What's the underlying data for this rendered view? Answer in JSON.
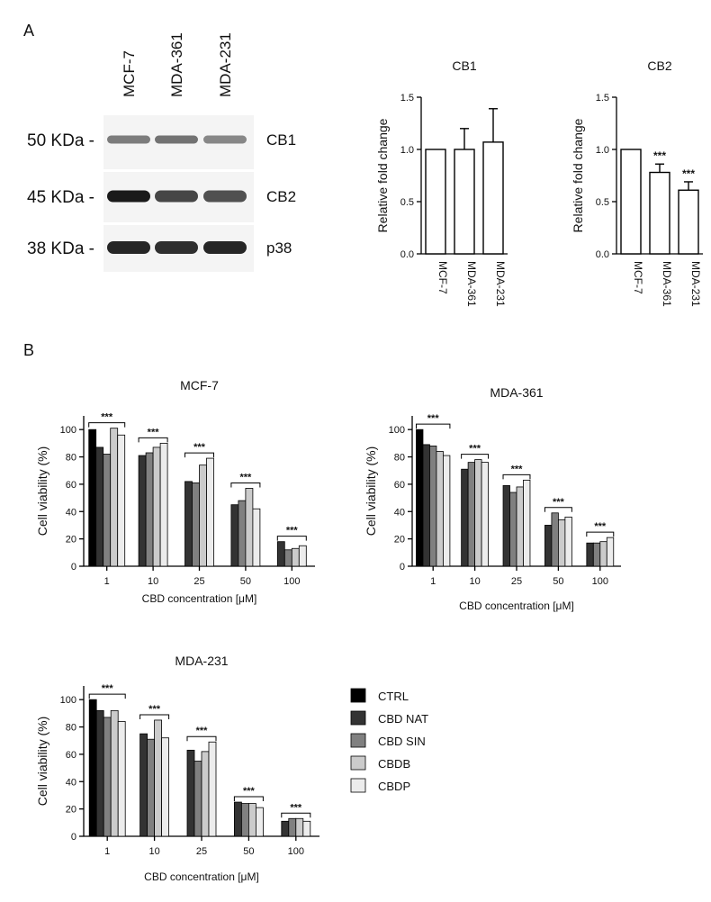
{
  "panels": {
    "a": "A",
    "b": "B"
  },
  "blot": {
    "cell_lines": [
      "MCF-7",
      "MDA-361",
      "MDA-231"
    ],
    "bands": [
      {
        "mw": "50 KDa -",
        "protein": "CB1",
        "intensity": [
          0.55,
          0.6,
          0.5
        ]
      },
      {
        "mw": "45 KDa -",
        "protein": "CB2",
        "intensity": [
          1.0,
          0.8,
          0.75
        ]
      },
      {
        "mw": "38 KDa -",
        "protein": "p38",
        "intensity": [
          0.95,
          0.9,
          0.95
        ]
      }
    ],
    "colors": {
      "panel_bg": "#f4f4f4",
      "band": "#1a1a1a",
      "divider": "#ffffff"
    }
  },
  "legend": {
    "position": "right",
    "items": [
      {
        "label": "CTRL",
        "color": "#000000"
      },
      {
        "label": "CBD NAT",
        "color": "#333333"
      },
      {
        "label": "CBD SIN",
        "color": "#808080"
      },
      {
        "label": "CBDB",
        "color": "#cbcbcb"
      },
      {
        "label": "CBDP",
        "color": "#ececec"
      }
    ]
  },
  "chart_data": [
    {
      "type": "bar",
      "title": "CB1",
      "ylabel": "Relative fold change",
      "xlabel": "",
      "categories": [
        "MCF-7",
        "MDA-361",
        "MDA-231"
      ],
      "values": [
        1.0,
        1.0,
        1.07
      ],
      "errors": [
        0,
        0.2,
        0.32
      ],
      "significance": [
        "",
        "",
        ""
      ],
      "ylim": [
        0,
        1.5
      ],
      "yticks": [
        "0.0",
        "0.5",
        "1.0",
        "1.5"
      ],
      "bar_color": "#ffffff",
      "grid": false
    },
    {
      "type": "bar",
      "title": "CB2",
      "ylabel": "Relative fold change",
      "xlabel": "",
      "categories": [
        "MCF-7",
        "MDA-361",
        "MDA-231"
      ],
      "values": [
        1.0,
        0.78,
        0.61
      ],
      "errors": [
        0,
        0.08,
        0.08
      ],
      "significance": [
        "",
        "***",
        "***"
      ],
      "ylim": [
        0,
        1.5
      ],
      "yticks": [
        "0.0",
        "0.5",
        "1.0",
        "1.5"
      ],
      "bar_color": "#ffffff",
      "grid": false
    },
    {
      "type": "bar",
      "title": "MCF-7",
      "ylabel": "Cell viability  (%)",
      "xlabel": "CBD concentration [μM]",
      "categories": [
        "1",
        "10",
        "25",
        "50",
        "100"
      ],
      "series": [
        {
          "name": "CTRL",
          "values": [
            100,
            null,
            null,
            null,
            null
          ]
        },
        {
          "name": "CBD NAT",
          "values": [
            87,
            81,
            62,
            45,
            18
          ]
        },
        {
          "name": "CBD SIN",
          "values": [
            82,
            83,
            61,
            48,
            12
          ]
        },
        {
          "name": "CBDB",
          "values": [
            101,
            87,
            74,
            57,
            13
          ]
        },
        {
          "name": "CBDP",
          "values": [
            96,
            90,
            79,
            42,
            15
          ]
        }
      ],
      "significance": [
        "***",
        "***",
        "***",
        "***",
        "***"
      ],
      "ylim": [
        0,
        110
      ],
      "yticks": [
        "0",
        "20",
        "40",
        "60",
        "80",
        "100"
      ],
      "grid": false
    },
    {
      "type": "bar",
      "title": "MDA-361",
      "ylabel": "Cell viability  (%)",
      "xlabel": "CBD concentration [μM]",
      "categories": [
        "1",
        "10",
        "25",
        "50",
        "100"
      ],
      "series": [
        {
          "name": "CTRL",
          "values": [
            100,
            null,
            null,
            null,
            null
          ]
        },
        {
          "name": "CBD NAT",
          "values": [
            89,
            71,
            59,
            30,
            17
          ]
        },
        {
          "name": "CBD SIN",
          "values": [
            88,
            76,
            54,
            39,
            17
          ]
        },
        {
          "name": "CBDB",
          "values": [
            84,
            78,
            58,
            34,
            18
          ]
        },
        {
          "name": "CBDP",
          "values": [
            81,
            76,
            63,
            36,
            21
          ]
        }
      ],
      "significance": [
        "***",
        "***",
        "***",
        "***",
        "***"
      ],
      "ylim": [
        0,
        110
      ],
      "yticks": [
        "0",
        "20",
        "40",
        "60",
        "80",
        "100"
      ],
      "grid": false
    },
    {
      "type": "bar",
      "title": "MDA-231",
      "ylabel": "Cell viability  (%)",
      "xlabel": "CBD concentration [μM]",
      "categories": [
        "1",
        "10",
        "25",
        "50",
        "100"
      ],
      "series": [
        {
          "name": "CTRL",
          "values": [
            100,
            null,
            null,
            null,
            null
          ]
        },
        {
          "name": "CBD NAT",
          "values": [
            92,
            75,
            63,
            25,
            11
          ]
        },
        {
          "name": "CBD SIN",
          "values": [
            87,
            71,
            55,
            24,
            13
          ]
        },
        {
          "name": "CBDB",
          "values": [
            92,
            85,
            62,
            24,
            13
          ]
        },
        {
          "name": "CBDP",
          "values": [
            84,
            72,
            69,
            21,
            11
          ]
        }
      ],
      "significance": [
        "***",
        "***",
        "***",
        "***",
        "***"
      ],
      "ylim": [
        0,
        110
      ],
      "yticks": [
        "0",
        "20",
        "40",
        "60",
        "80",
        "100"
      ],
      "grid": false
    }
  ]
}
